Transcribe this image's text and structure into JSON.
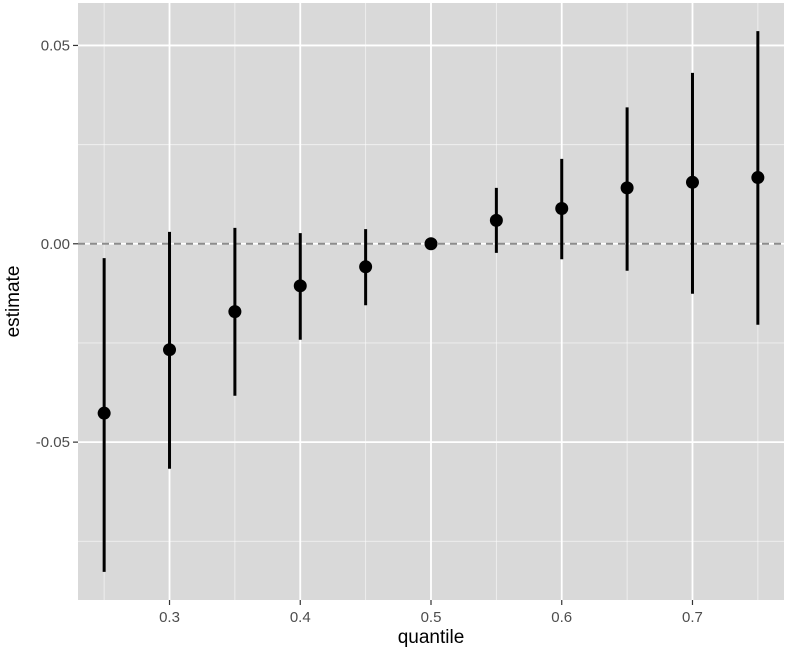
{
  "chart_data": {
    "type": "scatter",
    "xlabel": "quantile",
    "ylabel": "estimate",
    "xlim": [
      0.23,
      0.77
    ],
    "ylim": [
      -0.0898,
      0.0607
    ],
    "x_ticks": [
      0.3,
      0.4,
      0.5,
      0.6,
      0.7
    ],
    "x_tick_labels": [
      "0.3",
      "0.4",
      "0.5",
      "0.6",
      "0.7"
    ],
    "y_ticks": [
      -0.05,
      0.0,
      0.05
    ],
    "y_tick_labels": [
      "-0.05",
      "0.00",
      "0.05"
    ],
    "reference_line_y": 0,
    "grid": true,
    "colors": {
      "panel": "#d9d9d9",
      "grid": "#ffffff",
      "mark": "#000000",
      "reference": "#8c8c8c"
    },
    "series": [
      {
        "points": [
          {
            "x": 0.25,
            "y": -0.0427,
            "ymin": -0.0827,
            "ymax": -0.0036
          },
          {
            "x": 0.3,
            "y": -0.0267,
            "ymin": -0.0567,
            "ymax": 0.003
          },
          {
            "x": 0.35,
            "y": -0.0171,
            "ymin": -0.0383,
            "ymax": 0.004
          },
          {
            "x": 0.4,
            "y": -0.0106,
            "ymin": -0.0242,
            "ymax": 0.0027
          },
          {
            "x": 0.45,
            "y": -0.0058,
            "ymin": -0.0155,
            "ymax": 0.0037
          },
          {
            "x": 0.5,
            "y": 0.0,
            "ymin": 0.0,
            "ymax": 0.0
          },
          {
            "x": 0.55,
            "y": 0.0059,
            "ymin": -0.0023,
            "ymax": 0.0141
          },
          {
            "x": 0.6,
            "y": 0.0089,
            "ymin": -0.0039,
            "ymax": 0.0214
          },
          {
            "x": 0.65,
            "y": 0.0141,
            "ymin": -0.0068,
            "ymax": 0.0344
          },
          {
            "x": 0.7,
            "y": 0.0155,
            "ymin": -0.0126,
            "ymax": 0.0431
          },
          {
            "x": 0.75,
            "y": 0.0167,
            "ymin": -0.0204,
            "ymax": 0.0536
          }
        ]
      }
    ]
  }
}
